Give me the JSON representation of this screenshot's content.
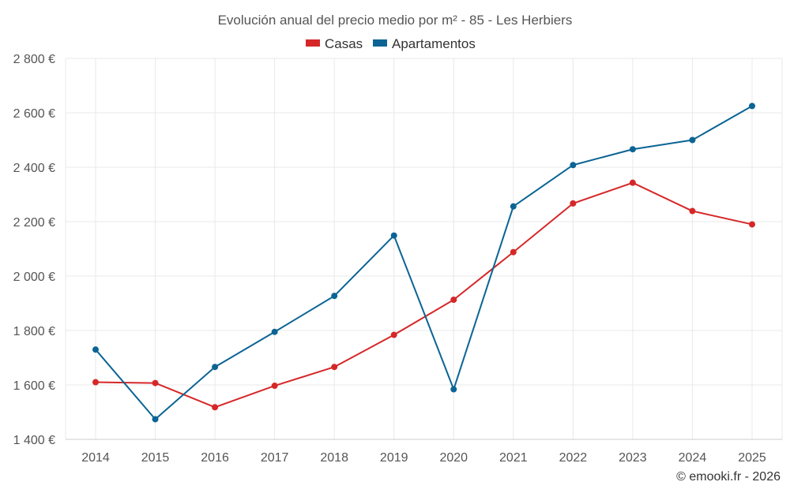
{
  "chart_data": {
    "type": "line",
    "title": "Evolución anual del precio medio por m² - 85 - Les Herbiers",
    "categories": [
      "2014",
      "2015",
      "2016",
      "2017",
      "2018",
      "2019",
      "2020",
      "2021",
      "2022",
      "2023",
      "2024",
      "2025"
    ],
    "series": [
      {
        "name": "Casas",
        "color": "#d62728",
        "values": [
          1610,
          1607,
          1518,
          1597,
          1666,
          1784,
          1913,
          2088,
          2267,
          2343,
          2239,
          2190
        ]
      },
      {
        "name": "Apartamentos",
        "color": "#0b6494",
        "values": [
          1730,
          1474,
          1666,
          1795,
          1927,
          2149,
          1584,
          2256,
          2408,
          2466,
          2500,
          2625
        ]
      }
    ],
    "xlabel": "",
    "ylabel": "",
    "ylim": [
      1400,
      2800
    ],
    "yticks": [
      1400,
      1600,
      1800,
      2000,
      2200,
      2400,
      2600,
      2800
    ],
    "ytick_labels": [
      "1 400 €",
      "1 600 €",
      "1 800 €",
      "2 000 €",
      "2 200 €",
      "2 400 €",
      "2 600 €",
      "2 800 €"
    ],
    "grid": true,
    "legend_position": "top-center"
  },
  "credit": "© emooki.fr - 2026"
}
